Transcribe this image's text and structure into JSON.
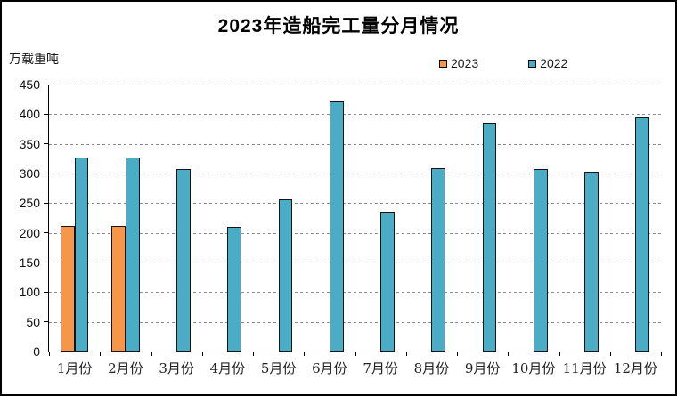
{
  "title": "2023年造船完工量分月情况",
  "y_axis_unit": "万载重吨",
  "legend": [
    {
      "label": "2023",
      "color": "#F79646"
    },
    {
      "label": "2022",
      "color": "#4BACC6"
    }
  ],
  "chart_data": {
    "type": "bar",
    "title": "2023年造船完工量分月情况",
    "ylabel": "万载重吨",
    "xlabel": "",
    "categories": [
      "1月份",
      "2月份",
      "3月份",
      "4月份",
      "5月份",
      "6月份",
      "7月份",
      "8月份",
      "9月份",
      "10月份",
      "11月份",
      "12月份"
    ],
    "series": [
      {
        "name": "2023",
        "color": "#F79646",
        "values": [
          211,
          211,
          null,
          null,
          null,
          null,
          null,
          null,
          null,
          null,
          null,
          null
        ]
      },
      {
        "name": "2022",
        "color": "#4BACC6",
        "values": [
          327,
          327,
          308,
          210,
          256,
          421,
          235,
          309,
          385,
          307,
          303,
          395
        ]
      }
    ],
    "ylim": [
      0,
      450
    ],
    "ytick_step": 50,
    "yticks": [
      0,
      50,
      100,
      150,
      200,
      250,
      300,
      350,
      400,
      450
    ],
    "grid": true,
    "gridline_style": "dashed-gray",
    "bar_border_color": "#141414",
    "legend_position": "top-right"
  }
}
